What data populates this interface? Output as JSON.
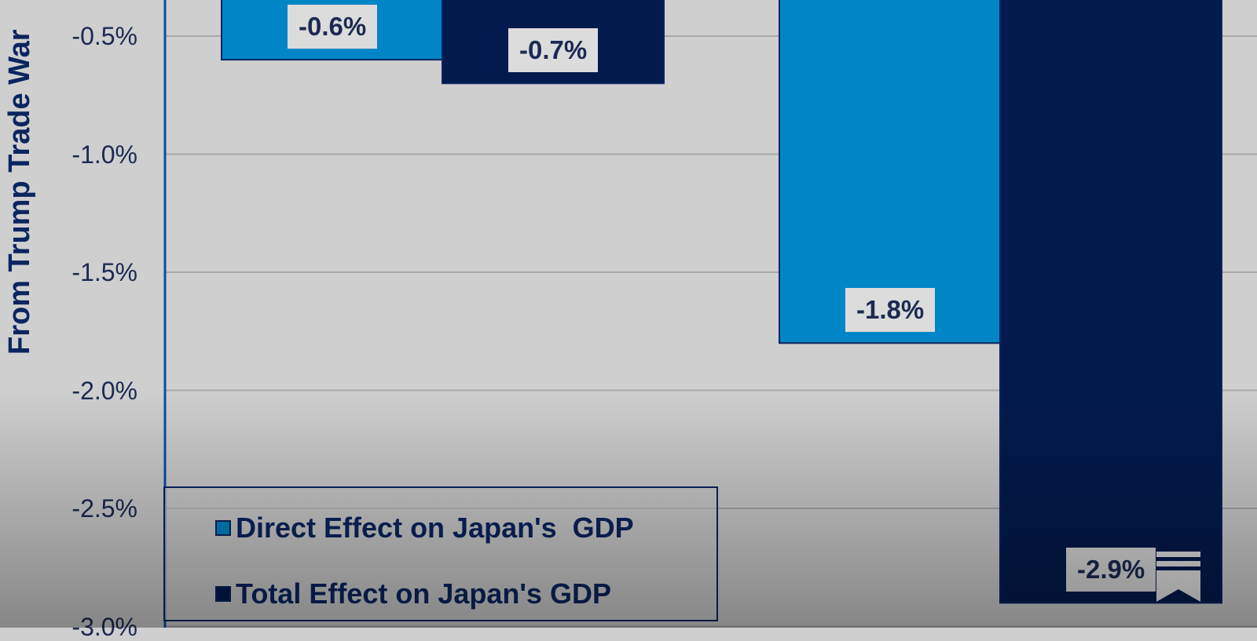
{
  "chart_data": {
    "type": "bar",
    "ylabel": "From Trump Trade War",
    "ylim": [
      -3.0,
      -0.35
    ],
    "yticks": [
      {
        "value": -0.5,
        "label": "-0.5%"
      },
      {
        "value": -1.0,
        "label": "-1.0%"
      },
      {
        "value": -1.5,
        "label": "-1.5%"
      },
      {
        "value": -2.0,
        "label": "-2.0%"
      },
      {
        "value": -2.5,
        "label": "-2.5%"
      },
      {
        "value": -3.0,
        "label": "-3.0%"
      }
    ],
    "grid": true,
    "categories": [
      "",
      ""
    ],
    "series": [
      {
        "name": "Direct Effect on Japan's  GDP",
        "color": "#0086c6",
        "values": [
          -0.6,
          -1.8
        ],
        "data_labels": [
          "-0.6%",
          "-1.8%"
        ]
      },
      {
        "name": "Total Effect on Japan's GDP",
        "color": "#021a4d",
        "values": [
          -0.7,
          -2.9
        ],
        "data_labels": [
          "-0.7%",
          "-2.9%"
        ]
      }
    ],
    "legend_position": "bottom-left"
  },
  "colors": {
    "background": "#cfcfcf",
    "gridline": "#a8a8a8",
    "axis": "#0b4ea2",
    "text": "#1c2a52",
    "bar_outline": "#0b2560"
  },
  "icons": {
    "corner": "bookmark-icon"
  }
}
